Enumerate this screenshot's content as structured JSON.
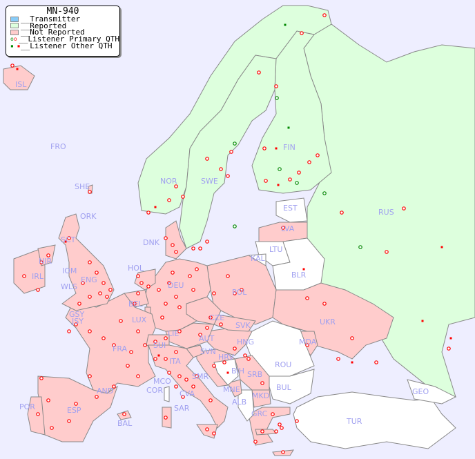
{
  "legend": {
    "title": "MN-940",
    "items": [
      {
        "label": "__Transmitter",
        "color": "#88ccf8"
      },
      {
        "label": "__Reported",
        "color": "#ddffdd"
      },
      {
        "label": "__Not Reported",
        "color": "#ffcccc"
      },
      {
        "label": "__Listener Primary QTH",
        "colors": [
          "#008800",
          "#ff0000"
        ]
      },
      {
        "label": "__Listener Other QTH",
        "colors": [
          "#008800",
          "#ff0000"
        ]
      }
    ]
  },
  "colors": {
    "sea": "#eeeeff",
    "reported": "#ddffdd",
    "not_reported": "#ffcccc",
    "no_data": "#ffffff",
    "border": "#888888",
    "label": "#a0a0f0",
    "listener": "#ff0000",
    "listener_reported": "#008800"
  },
  "countries": [
    {
      "code": "ISL",
      "status": "not_reported"
    },
    {
      "code": "FRO",
      "status": "none"
    },
    {
      "code": "SHE",
      "status": "not_reported"
    },
    {
      "code": "ORK",
      "status": "not_reported"
    },
    {
      "code": "NOR",
      "status": "reported"
    },
    {
      "code": "SWE",
      "status": "reported"
    },
    {
      "code": "FIN",
      "status": "reported"
    },
    {
      "code": "RUS",
      "status": "reported"
    },
    {
      "code": "EST",
      "status": "none"
    },
    {
      "code": "LVA",
      "status": "not_reported"
    },
    {
      "code": "LTU",
      "status": "none"
    },
    {
      "code": "KAL",
      "status": "none"
    },
    {
      "code": "BLR",
      "status": "none"
    },
    {
      "code": "UKR",
      "status": "not_reported"
    },
    {
      "code": "MDA",
      "status": "not_reported"
    },
    {
      "code": "ROU",
      "status": "none"
    },
    {
      "code": "BUL",
      "status": "none"
    },
    {
      "code": "TUR",
      "status": "none"
    },
    {
      "code": "GEO",
      "status": "none"
    },
    {
      "code": "GRC",
      "status": "not_reported"
    },
    {
      "code": "MKD",
      "status": "not_reported"
    },
    {
      "code": "ALB",
      "status": "none"
    },
    {
      "code": "MNE",
      "status": "not_reported"
    },
    {
      "code": "SRB",
      "status": "not_reported"
    },
    {
      "code": "BIH",
      "status": "none"
    },
    {
      "code": "HRV",
      "status": "not_reported"
    },
    {
      "code": "SVN",
      "status": "not_reported"
    },
    {
      "code": "HNG",
      "status": "not_reported"
    },
    {
      "code": "SVK",
      "status": "not_reported"
    },
    {
      "code": "CZE",
      "status": "not_reported"
    },
    {
      "code": "AUT",
      "status": "not_reported"
    },
    {
      "code": "POL",
      "status": "not_reported"
    },
    {
      "code": "DEU",
      "status": "not_reported"
    },
    {
      "code": "DNK",
      "status": "not_reported"
    },
    {
      "code": "HOL",
      "status": "not_reported"
    },
    {
      "code": "BEL",
      "status": "not_reported"
    },
    {
      "code": "LUX",
      "status": "not_reported"
    },
    {
      "code": "FRA",
      "status": "not_reported"
    },
    {
      "code": "SUI",
      "status": "not_reported"
    },
    {
      "code": "LIE",
      "status": "not_reported"
    },
    {
      "code": "ITA",
      "status": "not_reported"
    },
    {
      "code": "SMR",
      "status": "not_reported"
    },
    {
      "code": "CVA",
      "status": "not_reported"
    },
    {
      "code": "MCO",
      "status": "not_reported"
    },
    {
      "code": "COR",
      "status": "none"
    },
    {
      "code": "SAR",
      "status": "not_reported"
    },
    {
      "code": "AND",
      "status": "not_reported"
    },
    {
      "code": "ESP",
      "status": "not_reported"
    },
    {
      "code": "POR",
      "status": "not_reported"
    },
    {
      "code": "BAL",
      "status": "not_reported"
    },
    {
      "code": "IRL",
      "status": "not_reported"
    },
    {
      "code": "NIR",
      "status": "not_reported"
    },
    {
      "code": "SCT",
      "status": "not_reported"
    },
    {
      "code": "ENG",
      "status": "not_reported"
    },
    {
      "code": "WLS",
      "status": "not_reported"
    },
    {
      "code": "IOM",
      "status": "not_reported"
    },
    {
      "code": "GSY",
      "status": "not_reported"
    },
    {
      "code": "JSY",
      "status": "not_reported"
    }
  ]
}
